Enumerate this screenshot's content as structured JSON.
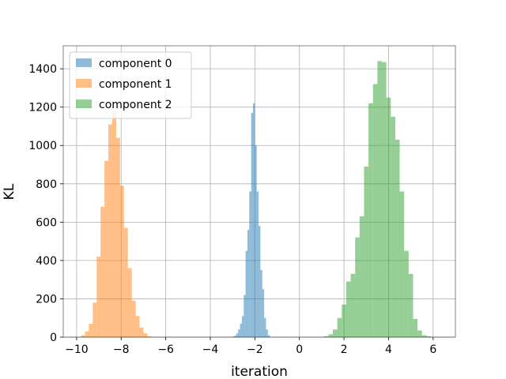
{
  "chart_data": {
    "type": "bar",
    "title": "",
    "xlabel": "iteration",
    "ylabel": "KL",
    "xlim": [
      -10.6,
      7.0
    ],
    "ylim": [
      0,
      1520
    ],
    "xticks": [
      -10,
      -8,
      -6,
      -4,
      -2,
      0,
      2,
      4,
      6
    ],
    "xtick_labels": [
      "−10",
      "−8",
      "−6",
      "−4",
      "−2",
      "0",
      "2",
      "4",
      "6"
    ],
    "yticks": [
      0,
      200,
      400,
      600,
      800,
      1000,
      1200,
      1400
    ],
    "ytick_labels": [
      "0",
      "200",
      "400",
      "600",
      "800",
      "1000",
      "1200",
      "1400"
    ],
    "grid": true,
    "legend_position": "top-left",
    "series": [
      {
        "name": "component 0",
        "color": "#1f77b4",
        "opacity": 0.5,
        "bin_start": -3.0,
        "bin_width": 0.0833,
        "values": [
          3,
          8,
          20,
          40,
          70,
          110,
          220,
          450,
          560,
          760,
          1170,
          1220,
          1000,
          760,
          580,
          350,
          250,
          100,
          40,
          10
        ]
      },
      {
        "name": "component 1",
        "color": "#ff7f0e",
        "opacity": 0.5,
        "bin_start": -9.8,
        "bin_width": 0.175,
        "values": [
          10,
          30,
          70,
          180,
          420,
          680,
          920,
          1110,
          1180,
          1040,
          790,
          570,
          360,
          190,
          110,
          50,
          20,
          5
        ]
      },
      {
        "name": "component 2",
        "color": "#2ca02c",
        "opacity": 0.5,
        "bin_start": 1.1,
        "bin_width": 0.2,
        "values": [
          5,
          15,
          40,
          100,
          170,
          290,
          330,
          520,
          630,
          890,
          1220,
          1320,
          1440,
          1435,
          1250,
          1150,
          1030,
          760,
          450,
          330,
          95,
          35,
          10,
          5
        ]
      }
    ]
  }
}
